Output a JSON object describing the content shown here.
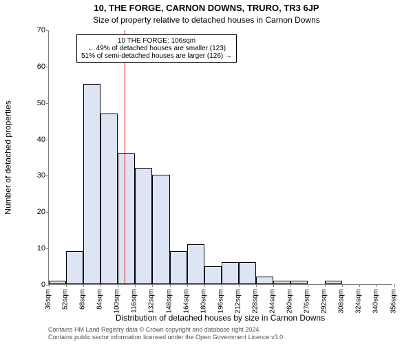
{
  "title": "10, THE FORGE, CARNON DOWNS, TRURO, TR3 6JP",
  "subtitle": "Size of property relative to detached houses in Carnon Downs",
  "ylabel": "Number of detached properties",
  "xlabel": "Distribution of detached houses by size in Carnon Downs",
  "footer_line1": "Contains HM Land Registry data © Crown copyright and database right 2024.",
  "footer_line2": "Contains public sector information licensed under the Open Government Licence v3.0.",
  "chart": {
    "type": "histogram",
    "ylim": [
      0,
      70
    ],
    "ytick_step": 10,
    "x_start": 36,
    "x_end": 355,
    "x_bin_width": 16,
    "x_tick_unit": "sqm",
    "bar_fill": "#dde5f4",
    "bar_stroke": "#000000",
    "axis_color": "#808080",
    "background_color": "#ffffff",
    "reference_line_x": 106,
    "reference_line_color": "#ff0000",
    "values": [
      1,
      9,
      55,
      47,
      36,
      32,
      30,
      9,
      11,
      5,
      6,
      6,
      2,
      1,
      1,
      0,
      1,
      0,
      0,
      0
    ],
    "overlay": {
      "line1": "10 THE FORGE: 106sqm",
      "line2": "← 49% of detached houses are smaller (123)",
      "line3": "51% of semi-detached houses are larger (126) →",
      "border_color": "#000000",
      "bg": "#ffffff"
    },
    "title_fontsize": 13,
    "subtitle_fontsize": 12,
    "axis_label_fontsize": 12,
    "tick_fontsize": 11,
    "xtick_fontsize": 10,
    "overlay_fontsize": 10
  }
}
